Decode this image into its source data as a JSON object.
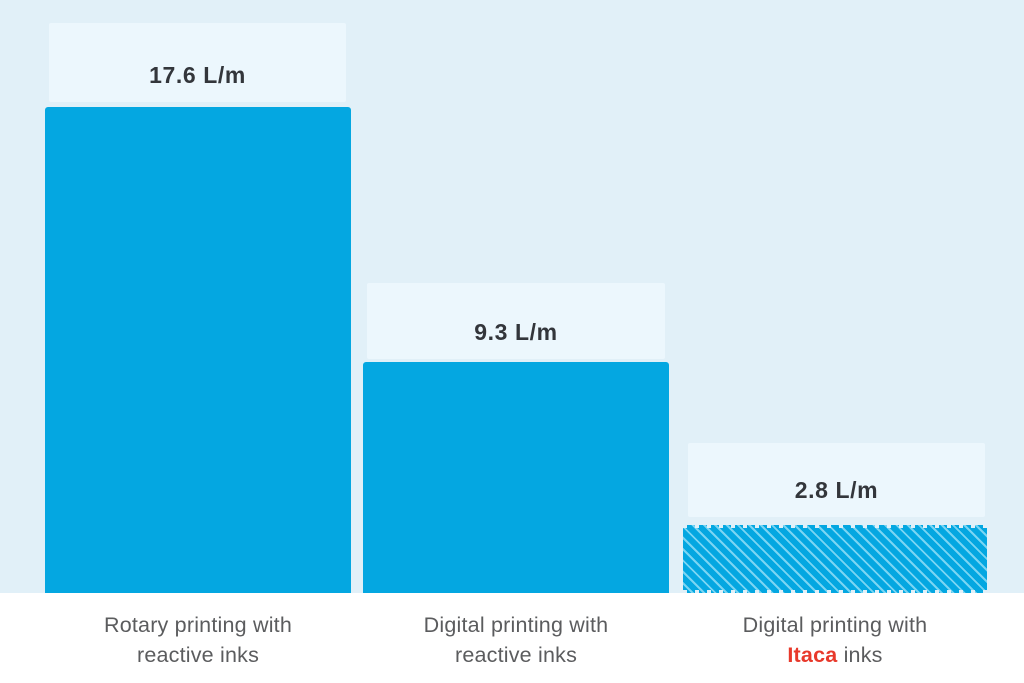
{
  "chart_data": {
    "type": "bar",
    "title": "",
    "unit": "L/m",
    "categories": [
      "Rotary printing with reactive inks",
      "Digital printing with reactive inks",
      "Digital printing with Itaca inks"
    ],
    "values": [
      17.6,
      9.3,
      2.8
    ],
    "value_labels": [
      "17.6 L/m",
      "9.3 L/m",
      "2.8 L/m"
    ],
    "xlabel": "",
    "ylabel": "",
    "ylim": [
      0,
      18
    ],
    "grid": false,
    "legend": false,
    "bar_styles": [
      "solid",
      "solid",
      "hatched"
    ],
    "highlighted_word": "Itaca"
  },
  "bars": [
    {
      "value_label": "17.6 L/m",
      "label_line1": "Rotary printing with",
      "label_emph": "",
      "label_line2": "reactive inks"
    },
    {
      "value_label": "9.3 L/m",
      "label_line1": "Digital printing with",
      "label_emph": "",
      "label_line2": "reactive inks"
    },
    {
      "value_label": "2.8 L/m",
      "label_line1": "Digital printing with",
      "label_emph": "Itaca",
      "label_line2": " inks"
    }
  ],
  "colors": {
    "chart_background": "#E1F0F8",
    "value_box_background": "#ECF7FD",
    "bar": "#04A7E1",
    "hatch_stripe": "#8EDDF6",
    "value_text": "#33363B",
    "category_text": "#5B5C5E",
    "emphasis_text": "#E8392B",
    "page_background": "#FFFFFF"
  }
}
